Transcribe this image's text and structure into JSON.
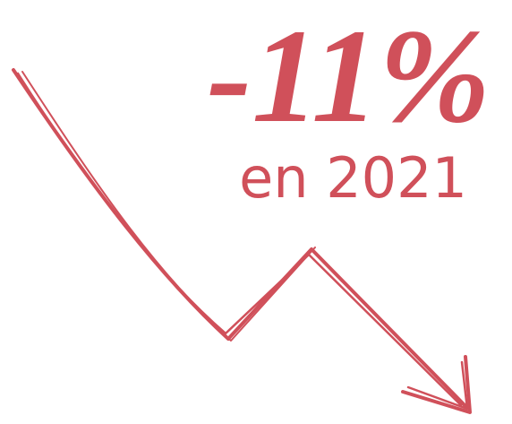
{
  "headline": "-11%",
  "subtitle": "en 2021"
}
